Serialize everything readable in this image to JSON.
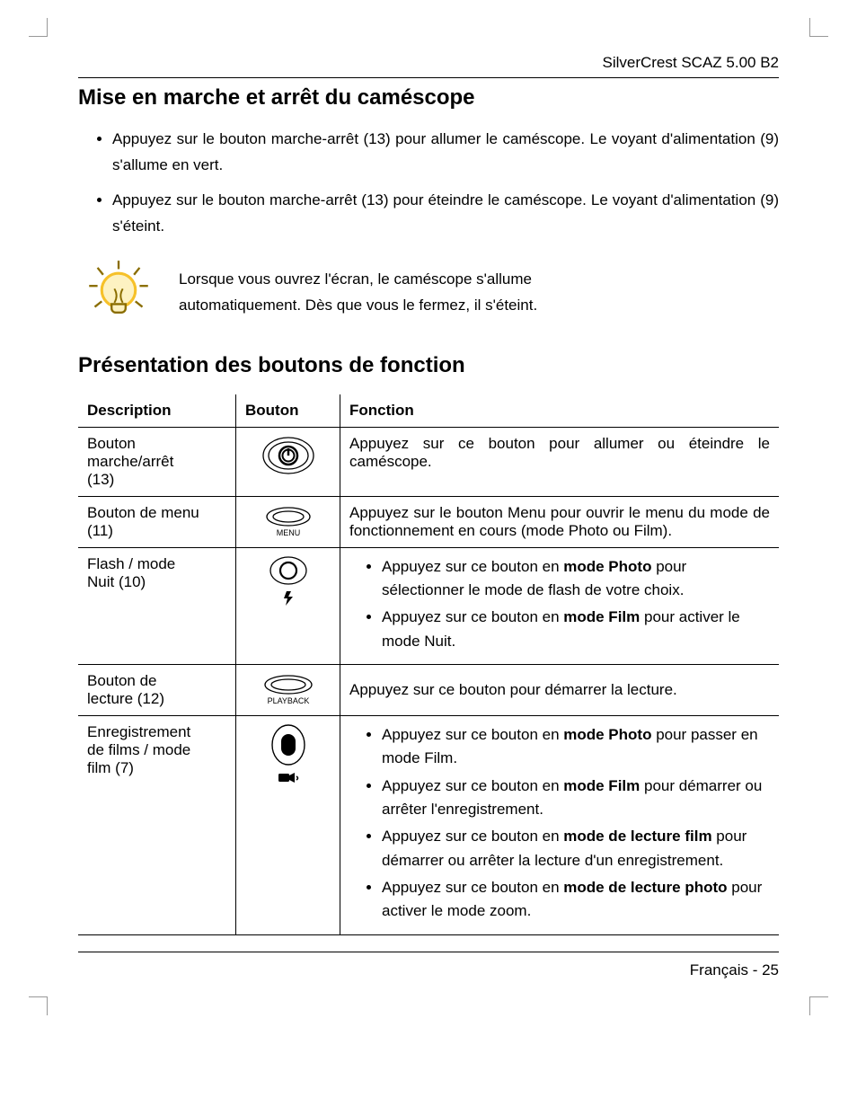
{
  "running_head": "SilverCrest SCAZ 5.00 B2",
  "section1_title": "Mise en marche et arrêt du caméscope",
  "body_bullets": [
    "Appuyez sur le bouton marche-arrêt (13) pour allumer le caméscope. Le voyant d'alimentation (9) s'allume en vert.",
    "Appuyez sur le bouton marche-arrêt (13) pour éteindre le caméscope. Le voyant d'alimentation (9) s'éteint."
  ],
  "tip_lines": [
    "Lorsque vous ouvrez l'écran, le caméscope s'allume",
    "automatiquement. Dès que vous le fermez, il s'éteint."
  ],
  "section2_title": "Présentation des boutons de fonction",
  "table": {
    "headers": {
      "desc": "Description",
      "btn": "Bouton",
      "fn": "Fonction"
    },
    "rows": [
      {
        "desc_lines": [
          "Bouton",
          "marche/arrêt",
          "(13)"
        ],
        "icon": "power",
        "fn_html": "Appuyez sur ce bouton pour allumer ou éteindre le caméscope."
      },
      {
        "desc_lines": [
          "Bouton de menu",
          "(11)"
        ],
        "icon": "menu",
        "fn_html": "Appuyez sur le bouton Menu pour ouvrir le menu du mode de fonctionnement en cours (mode Photo ou Film)."
      },
      {
        "desc_lines": [
          "Flash / mode",
          "Nuit (10)"
        ],
        "icon": "flash",
        "fn_list": [
          "Appuyez sur ce bouton en <b>mode Photo</b> pour sélectionner le mode de flash de votre choix.",
          "Appuyez sur ce bouton en <b>mode Film</b> pour activer le mode Nuit."
        ]
      },
      {
        "desc_lines": [
          "Bouton de",
          "lecture (12)"
        ],
        "icon": "playback",
        "fn_html": "Appuyez sur ce bouton pour démarrer la lecture."
      },
      {
        "desc_lines": [
          "Enregistrement",
          "de films / mode",
          "film (7)"
        ],
        "icon": "record",
        "fn_list": [
          "Appuyez sur ce bouton en <b>mode Photo</b> pour passer en mode Film.",
          "Appuyez sur ce bouton en <b>mode Film</b> pour démarrer ou arrêter l'enregistrement.",
          "Appuyez sur ce bouton en <b>mode de lecture film</b> pour démarrer ou arrêter la lecture d'un enregistrement.",
          "Appuyez sur ce bouton en <b>mode de lecture photo</b> pour activer le mode zoom."
        ]
      }
    ]
  },
  "icon_labels": {
    "menu": "MENU",
    "playback": "PLAYBACK"
  },
  "footer": "Français - 25",
  "colors": {
    "tip_bulb_rim": "#f6c12a",
    "tip_bulb_fill": "#fdf2c2",
    "tip_bulb_stroke": "#8a6d00"
  }
}
